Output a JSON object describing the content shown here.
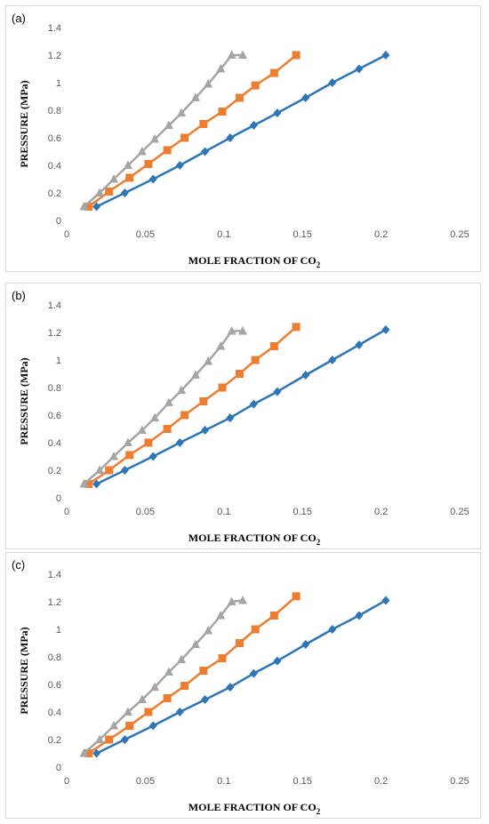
{
  "chart_data": [
    {
      "panel_label": "(a)",
      "type": "line",
      "xlabel": "MOLE FRACTION OF CO",
      "xlabel_sub": "2",
      "ylabel": "PRESSURE (MPa)",
      "xlim": [
        0,
        0.25
      ],
      "ylim": [
        0,
        1.4
      ],
      "xticks": [
        "0",
        "0.05",
        "0.1",
        "0.15",
        "0.2",
        "0.25"
      ],
      "yticks": [
        "0",
        "0.2",
        "0.4",
        "0.6",
        "0.8",
        "1",
        "1.2",
        "1.4"
      ],
      "grid": false,
      "series": [
        {
          "color": "#2e75b6",
          "marker": "diamond",
          "x": [
            0.019,
            0.037,
            0.055,
            0.072,
            0.088,
            0.104,
            0.119,
            0.134,
            0.152,
            0.169,
            0.186,
            0.203
          ],
          "y": [
            0.1,
            0.2,
            0.3,
            0.4,
            0.5,
            0.6,
            0.69,
            0.78,
            0.89,
            1.0,
            1.1,
            1.2
          ]
        },
        {
          "color": "#ed7d31",
          "marker": "square",
          "x": [
            0.014,
            0.027,
            0.04,
            0.052,
            0.064,
            0.075,
            0.087,
            0.099,
            0.11,
            0.12,
            0.132,
            0.146
          ],
          "y": [
            0.1,
            0.21,
            0.31,
            0.41,
            0.51,
            0.6,
            0.7,
            0.79,
            0.89,
            0.98,
            1.07,
            1.2
          ]
        },
        {
          "color": "#a5a5a5",
          "marker": "triangle",
          "x": [
            0.011,
            0.021,
            0.03,
            0.039,
            0.048,
            0.056,
            0.065,
            0.073,
            0.082,
            0.09,
            0.098,
            0.105,
            0.112
          ],
          "y": [
            0.1,
            0.2,
            0.3,
            0.4,
            0.5,
            0.59,
            0.69,
            0.78,
            0.89,
            0.99,
            1.1,
            1.2,
            1.2
          ]
        }
      ]
    },
    {
      "panel_label": "(b)",
      "type": "line",
      "xlabel": "MOLE FRACTION OF CO",
      "xlabel_sub": "2",
      "ylabel": "PRESSURE (MPa)",
      "xlim": [
        0,
        0.25
      ],
      "ylim": [
        0,
        1.4
      ],
      "xticks": [
        "0",
        "0.05",
        "0.1",
        "0.15",
        "0.2",
        "0.25"
      ],
      "yticks": [
        "0",
        "0.2",
        "0.4",
        "0.6",
        "0.8",
        "1",
        "1.2",
        "1.4"
      ],
      "grid": false,
      "series": [
        {
          "color": "#2e75b6",
          "marker": "diamond",
          "x": [
            0.019,
            0.037,
            0.055,
            0.072,
            0.088,
            0.104,
            0.119,
            0.134,
            0.152,
            0.169,
            0.186,
            0.203
          ],
          "y": [
            0.1,
            0.2,
            0.3,
            0.4,
            0.49,
            0.58,
            0.68,
            0.77,
            0.89,
            1.0,
            1.11,
            1.22
          ]
        },
        {
          "color": "#ed7d31",
          "marker": "square",
          "x": [
            0.014,
            0.027,
            0.04,
            0.052,
            0.064,
            0.075,
            0.087,
            0.099,
            0.11,
            0.12,
            0.132,
            0.146
          ],
          "y": [
            0.1,
            0.2,
            0.31,
            0.4,
            0.5,
            0.6,
            0.7,
            0.8,
            0.9,
            1.0,
            1.1,
            1.24
          ]
        },
        {
          "color": "#a5a5a5",
          "marker": "triangle",
          "x": [
            0.011,
            0.021,
            0.03,
            0.039,
            0.048,
            0.056,
            0.065,
            0.073,
            0.082,
            0.09,
            0.098,
            0.105,
            0.112
          ],
          "y": [
            0.1,
            0.2,
            0.3,
            0.4,
            0.49,
            0.58,
            0.69,
            0.78,
            0.89,
            0.99,
            1.1,
            1.21,
            1.21
          ]
        }
      ]
    },
    {
      "panel_label": "(c)",
      "type": "line",
      "xlabel": "MOLE FRACTION OF CO",
      "xlabel_sub": "2",
      "ylabel": "PRESSURE (MPa)",
      "xlim": [
        0,
        0.25
      ],
      "ylim": [
        0,
        1.4
      ],
      "xticks": [
        "0",
        "0.05",
        "0.1",
        "0.15",
        "0.2",
        "0.25"
      ],
      "yticks": [
        "0",
        "0.2",
        "0.4",
        "0.6",
        "0.8",
        "1",
        "1.2",
        "1.4"
      ],
      "grid": false,
      "series": [
        {
          "color": "#2e75b6",
          "marker": "diamond",
          "x": [
            0.019,
            0.037,
            0.055,
            0.072,
            0.088,
            0.104,
            0.119,
            0.134,
            0.152,
            0.169,
            0.186,
            0.203
          ],
          "y": [
            0.1,
            0.2,
            0.3,
            0.4,
            0.49,
            0.58,
            0.68,
            0.77,
            0.89,
            1.0,
            1.1,
            1.21
          ]
        },
        {
          "color": "#ed7d31",
          "marker": "square",
          "x": [
            0.014,
            0.027,
            0.04,
            0.052,
            0.064,
            0.075,
            0.087,
            0.099,
            0.11,
            0.12,
            0.132,
            0.146
          ],
          "y": [
            0.1,
            0.2,
            0.3,
            0.4,
            0.5,
            0.59,
            0.7,
            0.79,
            0.9,
            1.0,
            1.1,
            1.24
          ]
        },
        {
          "color": "#a5a5a5",
          "marker": "triangle",
          "x": [
            0.011,
            0.021,
            0.03,
            0.039,
            0.048,
            0.056,
            0.065,
            0.073,
            0.082,
            0.09,
            0.098,
            0.105,
            0.112
          ],
          "y": [
            0.1,
            0.2,
            0.3,
            0.4,
            0.49,
            0.58,
            0.69,
            0.78,
            0.89,
            0.99,
            1.1,
            1.2,
            1.21
          ]
        }
      ]
    }
  ]
}
